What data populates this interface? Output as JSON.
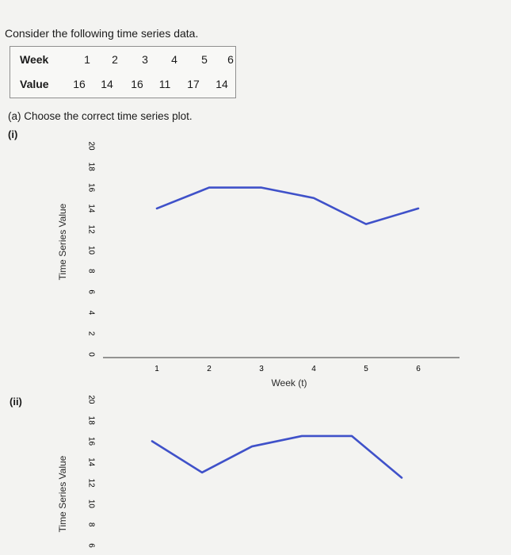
{
  "question": {
    "intro": "Consider the following time series data.",
    "part_a": "(a) Choose the correct time series plot."
  },
  "table": {
    "week_label": "Week",
    "value_label": "Value",
    "weeks": [
      "1",
      "2",
      "3",
      "4",
      "5",
      "6"
    ],
    "values": [
      "16",
      "14",
      "16",
      "11",
      "17",
      "14"
    ]
  },
  "options": {
    "i_label": "(i)",
    "ii_label": "(ii)"
  },
  "chart_data": [
    {
      "type": "line",
      "option": "(i)",
      "x": [
        1,
        2,
        3,
        4,
        5,
        6
      ],
      "y": [
        14,
        16,
        16,
        15,
        12.5,
        14
      ],
      "ylabel": "Time Series Value",
      "xlabel": "Week (t)",
      "yticks": [
        0,
        2,
        4,
        6,
        8,
        10,
        12,
        14,
        16,
        18,
        20
      ],
      "xticks": [
        1,
        2,
        3,
        4,
        5,
        6
      ],
      "ylim": [
        0,
        20
      ],
      "line_color": "#3f51c9",
      "grid": false
    },
    {
      "type": "line",
      "option": "(ii)",
      "x": [
        1,
        2,
        3,
        4,
        5,
        6
      ],
      "y": [
        16,
        13,
        15.5,
        16.5,
        16.5,
        12.5
      ],
      "ylabel": "Time Series Value",
      "yticks": [
        6,
        8,
        10,
        12,
        14,
        16,
        18,
        20
      ],
      "ylim": [
        6,
        20
      ],
      "line_color": "#3f51c9",
      "grid": false
    }
  ]
}
